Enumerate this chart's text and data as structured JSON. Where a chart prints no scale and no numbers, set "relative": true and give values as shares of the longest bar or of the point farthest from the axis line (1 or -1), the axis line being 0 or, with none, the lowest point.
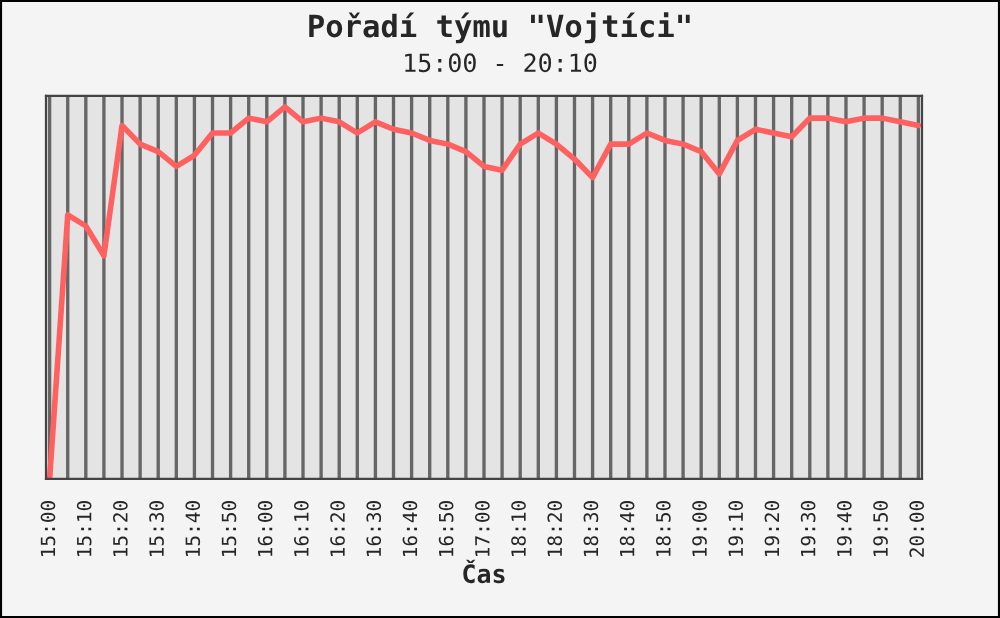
{
  "chart_data": {
    "type": "line",
    "title": "Pořadí týmu \"Vojtíci\"",
    "subtitle": "15:00 - 20:10",
    "xlabel": "Čas",
    "relative": true,
    "grid": "x",
    "categories": [
      "15:00",
      null,
      "15:10",
      null,
      "15:20",
      null,
      "15:30",
      null,
      "15:40",
      null,
      "15:50",
      null,
      "16:00",
      null,
      "16:10",
      null,
      "16:20",
      null,
      "16:30",
      null,
      "16:40",
      null,
      "16:50",
      null,
      "17:00",
      null,
      "18:10",
      null,
      "18:20",
      null,
      "18:30",
      null,
      "18:40",
      null,
      "18:50",
      null,
      "19:00",
      null,
      "19:10",
      null,
      "19:20",
      null,
      "19:30",
      null,
      "19:40",
      null,
      "19:50",
      null,
      "20:00"
    ],
    "series": [
      {
        "color": "#ff6060",
        "values": [
          0.0,
          0.71,
          0.68,
          0.6,
          0.95,
          0.9,
          0.88,
          0.84,
          0.87,
          0.93,
          0.93,
          0.97,
          0.96,
          1.0,
          0.96,
          0.97,
          0.96,
          0.93,
          0.96,
          0.94,
          0.93,
          0.91,
          0.9,
          0.88,
          0.84,
          0.83,
          0.9,
          0.93,
          0.9,
          0.86,
          0.81,
          0.9,
          0.9,
          0.93,
          0.91,
          0.9,
          0.88,
          0.82,
          0.91,
          0.94,
          0.93,
          0.92,
          0.97,
          0.97,
          0.96,
          0.97,
          0.97,
          0.96,
          0.95
        ]
      }
    ]
  }
}
